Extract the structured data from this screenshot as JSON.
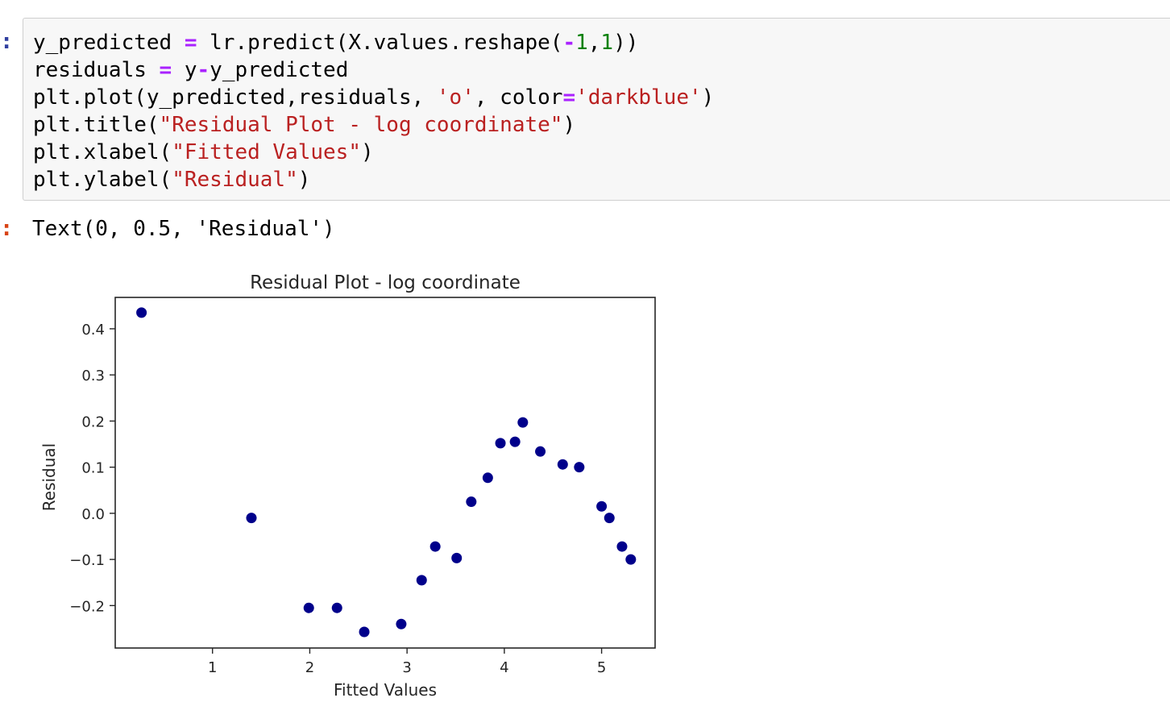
{
  "cell": {
    "input_prompt": ":",
    "output_prompt": ":",
    "code": {
      "l1": {
        "a": "y_predicted ",
        "b": "=",
        "c": " lr.predict(X.values.reshape(",
        "d": "-",
        "e": "1",
        "f": ",",
        "g": "1",
        "h": "))"
      },
      "l2": {
        "a": "residuals ",
        "b": "=",
        "c": " y",
        "d": "-",
        "e": "y_predicted"
      },
      "l3": {
        "a": "plt.plot(y_predicted,residuals, ",
        "b": "'o'",
        "c": ", color",
        "d": "=",
        "e": "'darkblue'",
        "f": ")"
      },
      "l4": {
        "a": "plt.title(",
        "b": "\"Residual Plot - log coordinate\"",
        "c": ")"
      },
      "l5": {
        "a": "plt.xlabel(",
        "b": "\"Fitted Values\"",
        "c": ")"
      },
      "l6": {
        "a": "plt.ylabel(",
        "b": "\"Residual\"",
        "c": ")"
      }
    },
    "output_text": "Text(0, 0.5, 'Residual')"
  },
  "chart_data": {
    "type": "scatter",
    "title": "Residual Plot - log coordinate",
    "xlabel": "Fitted Values",
    "ylabel": "Residual",
    "xlim": [
      0.0,
      5.55
    ],
    "ylim": [
      -0.292,
      0.468
    ],
    "xticks": [
      1,
      2,
      3,
      4,
      5
    ],
    "xtick_labels": [
      "1",
      "2",
      "3",
      "4",
      "5"
    ],
    "yticks": [
      -0.2,
      -0.1,
      0.0,
      0.1,
      0.2,
      0.3,
      0.4
    ],
    "ytick_labels": [
      "−0.2",
      "−0.1",
      "0.0",
      "0.1",
      "0.2",
      "0.3",
      "0.4"
    ],
    "marker_color": "#00008b",
    "grid": false,
    "points": [
      {
        "x": 0.27,
        "y": 0.435
      },
      {
        "x": 1.4,
        "y": -0.01
      },
      {
        "x": 1.99,
        "y": -0.205
      },
      {
        "x": 2.28,
        "y": -0.205
      },
      {
        "x": 2.56,
        "y": -0.257
      },
      {
        "x": 2.94,
        "y": -0.24
      },
      {
        "x": 3.15,
        "y": -0.145
      },
      {
        "x": 3.29,
        "y": -0.072
      },
      {
        "x": 3.51,
        "y": -0.097
      },
      {
        "x": 3.66,
        "y": 0.025
      },
      {
        "x": 3.83,
        "y": 0.077
      },
      {
        "x": 3.96,
        "y": 0.152
      },
      {
        "x": 4.11,
        "y": 0.155
      },
      {
        "x": 4.19,
        "y": 0.197
      },
      {
        "x": 4.37,
        "y": 0.134
      },
      {
        "x": 4.6,
        "y": 0.106
      },
      {
        "x": 4.77,
        "y": 0.1
      },
      {
        "x": 5.0,
        "y": 0.015
      },
      {
        "x": 5.08,
        "y": -0.01
      },
      {
        "x": 5.21,
        "y": -0.072
      },
      {
        "x": 5.3,
        "y": -0.1
      }
    ]
  }
}
